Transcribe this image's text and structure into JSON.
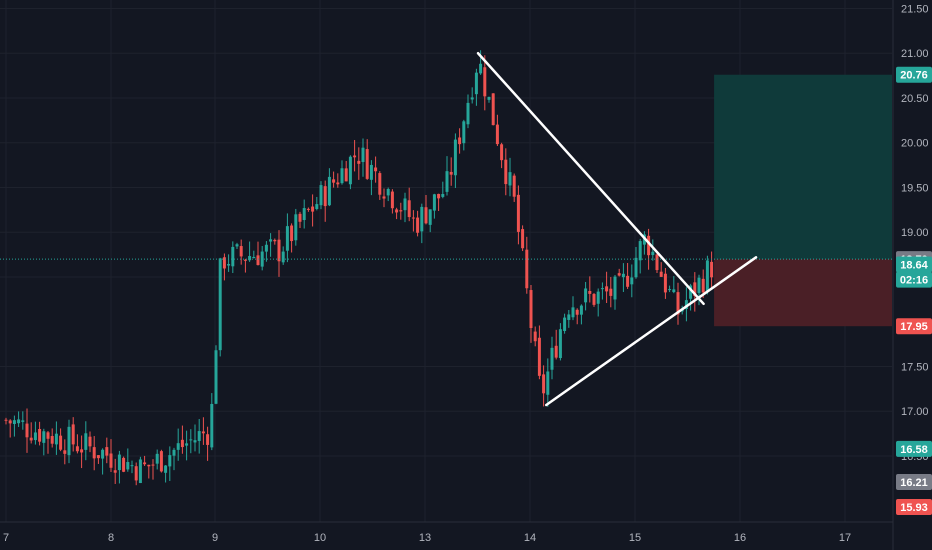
{
  "colors": {
    "background": "#131722",
    "grid": "#1e222d",
    "up": "#26a69a",
    "down": "#ef5350",
    "axis_text": "#b2b5be",
    "pattern_line": "#ffffff",
    "target_zone": "#0f3a3a",
    "stop_zone": "#4a1f26",
    "current_price_line": "#26a69a"
  },
  "chart_data": {
    "type": "candlestick",
    "title": "",
    "xlabel": "",
    "ylabel": "",
    "x_ticks": [
      "7",
      "8",
      "9",
      "10",
      "13",
      "14",
      "15",
      "16",
      "17"
    ],
    "ylim": [
      15.85,
      21.6
    ],
    "y_ticks": [
      "21.50",
      "21.00",
      "20.50",
      "20.00",
      "19.50",
      "19.00",
      "18.50",
      "17.50",
      "17.00",
      "16.50"
    ],
    "grid": true,
    "price_scale_position": "right",
    "series": [
      {
        "name": "",
        "kind": "ohlc",
        "key_levels": [
          {
            "x": 7.0,
            "price": 16.9
          },
          {
            "x": 7.9,
            "price": 16.55
          },
          {
            "x": 8.3,
            "price": 16.35
          },
          {
            "x": 8.95,
            "price": 16.8
          },
          {
            "x": 9.05,
            "price": 18.7
          },
          {
            "x": 9.6,
            "price": 18.8
          },
          {
            "x": 10.35,
            "price": 19.9
          },
          {
            "x": 10.9,
            "price": 19.1
          },
          {
            "x": 13.2,
            "price": 19.5
          },
          {
            "x": 13.5,
            "price": 20.95
          },
          {
            "x": 13.85,
            "price": 19.3
          },
          {
            "x": 14.1,
            "price": 17.15
          },
          {
            "x": 14.35,
            "price": 18.2
          },
          {
            "x": 14.85,
            "price": 18.35
          },
          {
            "x": 15.1,
            "price": 18.95
          },
          {
            "x": 15.4,
            "price": 18.1
          },
          {
            "x": 15.75,
            "price": 18.66
          }
        ]
      }
    ],
    "trendlines": [
      {
        "x1": 13.5,
        "y1": 21.0,
        "x2": 15.65,
        "y2": 18.2
      },
      {
        "x1": 14.15,
        "y1": 17.07,
        "x2": 16.15,
        "y2": 18.72
      }
    ],
    "zones": [
      {
        "type": "target",
        "x_start": 15.75,
        "x_end": 17.45,
        "y_top": 20.76,
        "y_bottom": 18.7
      },
      {
        "type": "stop",
        "x_start": 15.75,
        "x_end": 17.45,
        "y_top": 18.7,
        "y_bottom": 17.95
      }
    ],
    "current_price_line": 18.7,
    "price_badges": [
      {
        "label": "20.76",
        "value": 20.76,
        "bg": "#26a69a",
        "fg": "#ffffff"
      },
      {
        "label": "18.70",
        "value": 18.7,
        "bg": "#787b86",
        "fg": "#ffffff"
      },
      {
        "label": "18.64",
        "value": 18.64,
        "bg": "#26a69a",
        "fg": "#ffffff"
      },
      {
        "label": "02:16",
        "value": 18.47,
        "bg": "#26a69a",
        "fg": "#ffffff"
      },
      {
        "label": "17.95",
        "value": 17.95,
        "bg": "#ef5350",
        "fg": "#ffffff"
      },
      {
        "label": "16.58",
        "value": 16.58,
        "bg": "#26a69a",
        "fg": "#ffffff"
      },
      {
        "label": "16.21",
        "value": 16.21,
        "bg": "#787b86",
        "fg": "#ffffff"
      },
      {
        "label": "15.93",
        "value": 15.93,
        "bg": "#ef5350",
        "fg": "#ffffff"
      }
    ]
  }
}
